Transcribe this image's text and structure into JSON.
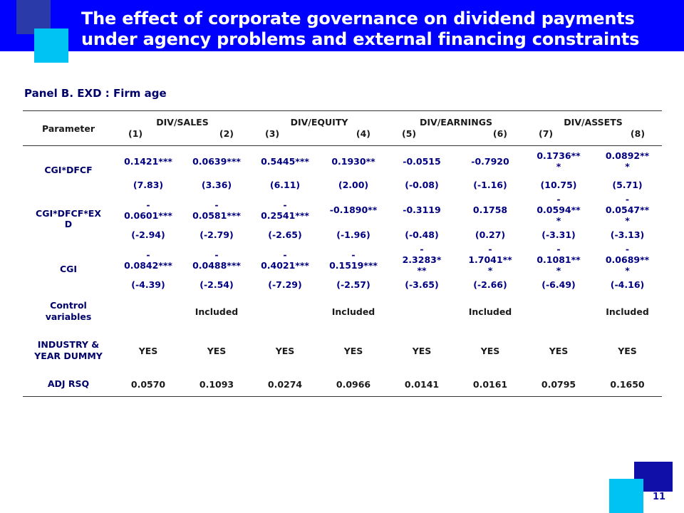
{
  "title": {
    "line1": "The effect of corporate governance on dividend payments",
    "line2": "under agency problems and external financing constraints"
  },
  "panel": "Panel B. EXD : Firm age",
  "header": {
    "parameter": "Parameter",
    "groups": [
      {
        "name": "DIV/SALES",
        "cols": [
          "(1)",
          "(2)"
        ]
      },
      {
        "name": "DIV/EQUITY",
        "cols": [
          "(3)",
          "(4)"
        ]
      },
      {
        "name": "DIV/EARNINGS",
        "cols": [
          "(5)",
          "(6)"
        ]
      },
      {
        "name": "DIV/ASSETS",
        "cols": [
          "(7)",
          "(8)"
        ]
      }
    ]
  },
  "rows": {
    "cgi_dfcf": {
      "label": "CGI*DFCF",
      "coef": [
        "0.1421***",
        "0.0639***",
        "0.5445***",
        "0.1930**",
        "-0.0515",
        "-0.7920",
        "0.1736**\n*",
        "0.0892**\n*"
      ],
      "t": [
        "(7.83)",
        "(3.36)",
        "(6.11)",
        "(2.00)",
        "(-0.08)",
        "(-1.16)",
        "(10.75)",
        "(5.71)"
      ]
    },
    "cgi_dfcf_exd": {
      "label": "CGI*DFCF*EX\nD",
      "coef": [
        "-\n0.0601***",
        "-\n0.0581***",
        "-\n0.2541***",
        "-0.1890**",
        "-0.3119",
        "0.1758",
        "-\n0.0594**\n*",
        "-\n0.0547**\n*"
      ],
      "t": [
        "(-2.94)",
        "(-2.79)",
        "(-2.65)",
        "(-1.96)",
        "(-0.48)",
        "(0.27)",
        "(-3.31)",
        "(-3.13)"
      ]
    },
    "cgi": {
      "label": "CGI",
      "coef": [
        "-\n0.0842***",
        "-\n0.0488***",
        "-\n0.4021***",
        "-\n0.1519***",
        "-\n2.3283*\n**",
        "-\n1.7041**\n*",
        "-\n0.1081**\n*",
        "-\n0.0689**\n*"
      ],
      "t": [
        "(-4.39)",
        "(-2.54)",
        "(-7.29)",
        "(-2.57)",
        "(-3.65)",
        "(-2.66)",
        "(-6.49)",
        "(-4.16)"
      ]
    },
    "control": {
      "label": "Control\nvariables",
      "values": [
        "",
        "Included",
        "",
        "Included",
        "",
        "Included",
        "",
        "Included"
      ]
    },
    "dummy": {
      "label": "INDUSTRY &\nYEAR DUMMY",
      "values": [
        "YES",
        "YES",
        "YES",
        "YES",
        "YES",
        "YES",
        "YES",
        "YES"
      ]
    },
    "adj_rsq": {
      "label": "ADJ RSQ",
      "values": [
        "0.0570",
        "0.1093",
        "0.0274",
        "0.0966",
        "0.0141",
        "0.0161",
        "0.0795",
        "0.1650"
      ]
    }
  },
  "page_number": "11",
  "colors": {
    "title_bar": "#0000ff",
    "accent_dark": "#2a3aa8",
    "accent_cyan": "#00c3f3",
    "label_navy": "#00006b",
    "value_blue": "#000080"
  }
}
